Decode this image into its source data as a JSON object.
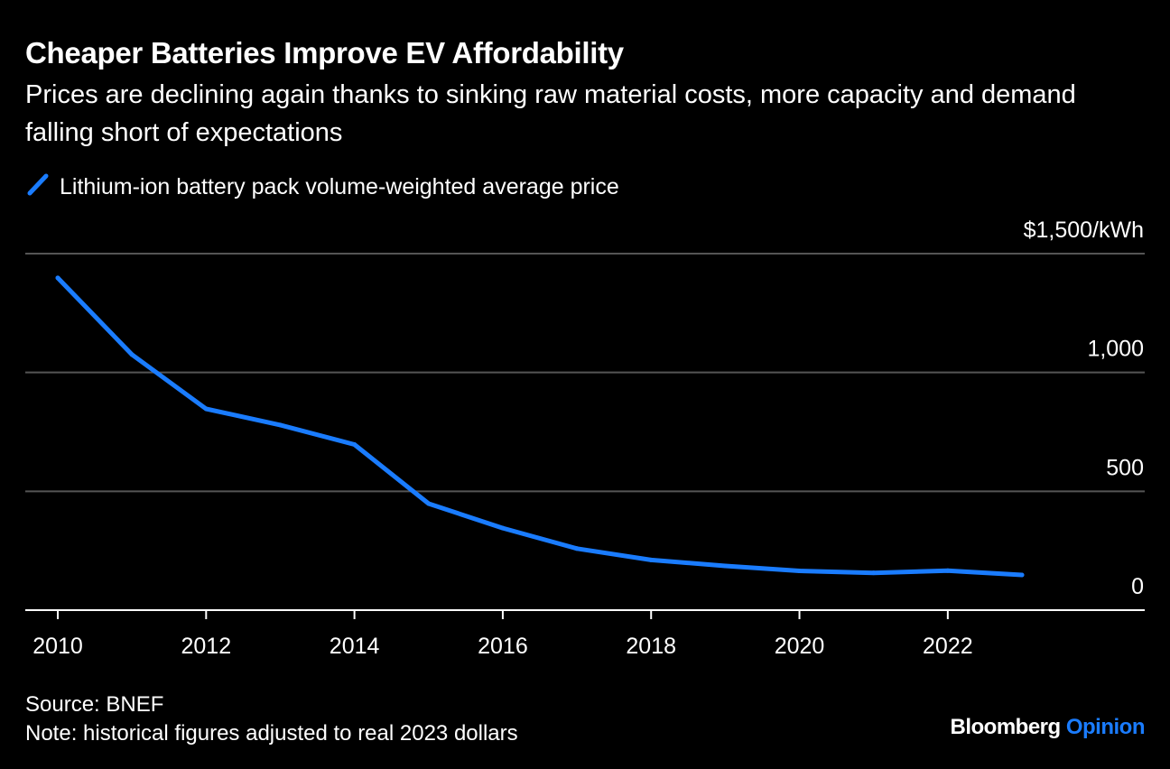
{
  "title": "Cheaper Batteries Improve EV Affordability",
  "subtitle": "Prices are declining again thanks to sinking raw material costs, more capacity and demand falling short of expectations",
  "legend_label": "Lithium-ion battery pack volume-weighted average price",
  "source": "Source: BNEF",
  "note": "Note: historical figures adjusted to real 2023 dollars",
  "brand": {
    "part1": "Bloomberg",
    "part2": "Opinion"
  },
  "colors": {
    "background": "#000000",
    "line": "#1a7cff",
    "grid": "#555555",
    "text": "#ffffff"
  },
  "chart_data": {
    "type": "line",
    "title": "Cheaper Batteries Improve EV Affordability",
    "xlabel": "",
    "ylabel": "",
    "y_unit_label": "$1,500/kWh",
    "x": [
      2010,
      2011,
      2012,
      2013,
      2014,
      2015,
      2016,
      2017,
      2018,
      2019,
      2020,
      2021,
      2022,
      2023
    ],
    "series": [
      {
        "name": "Lithium-ion battery pack volume-weighted average price",
        "values": [
          1398,
          1075,
          847,
          779,
          697,
          448,
          345,
          259,
          211,
          186,
          165,
          157,
          166,
          148
        ]
      }
    ],
    "xlim": [
      2010,
      2023
    ],
    "ylim": [
      0,
      1500
    ],
    "x_ticks": [
      2010,
      2012,
      2014,
      2016,
      2018,
      2020,
      2022
    ],
    "x_tick_labels": [
      "2010",
      "2012",
      "2014",
      "2016",
      "2018",
      "2020",
      "2022"
    ],
    "y_ticks": [
      0,
      500,
      1000,
      1500
    ],
    "y_tick_labels": [
      "0",
      "500",
      "1,000",
      "$1,500/kWh"
    ],
    "grid": true,
    "legend_position": "top-left"
  }
}
